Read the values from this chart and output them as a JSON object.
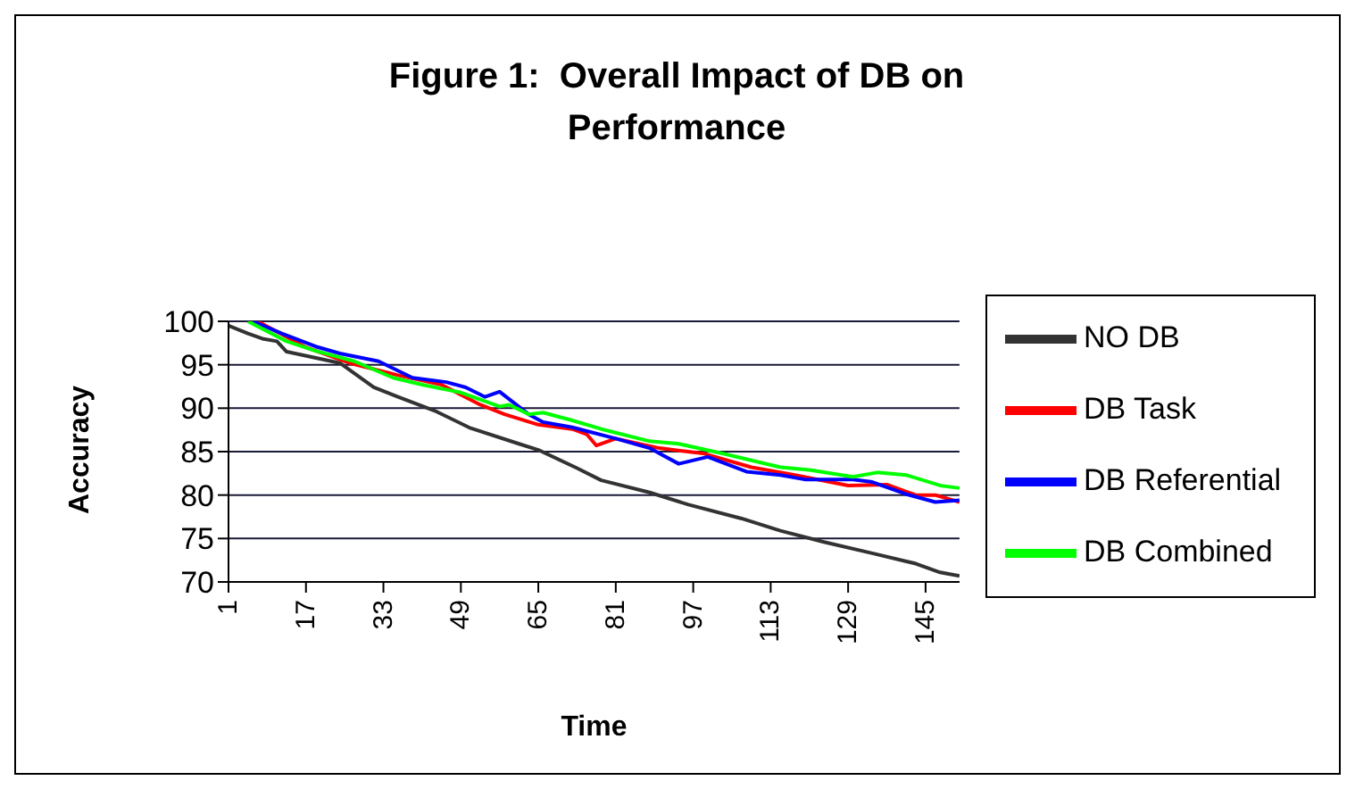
{
  "chart_data": {
    "type": "line",
    "title": "Figure 1:  Overall Impact of DB on Performance",
    "xlabel": "Time",
    "ylabel": "Accuracy",
    "xlim": [
      1,
      152
    ],
    "xticks": [
      1,
      17,
      33,
      49,
      65,
      81,
      97,
      113,
      129,
      145
    ],
    "ylim": [
      70,
      100
    ],
    "yticks": [
      70,
      75,
      80,
      85,
      90,
      95,
      100
    ],
    "grid": "y",
    "legend": "right",
    "marker": "none",
    "line_style": "solid",
    "series": [
      {
        "name": "NO DB",
        "color": "#333333",
        "x": [
          1,
          5,
          8,
          11,
          13,
          24,
          31,
          36,
          44,
          51,
          61,
          65,
          73,
          78,
          88,
          96,
          107,
          115,
          124,
          134,
          143,
          148,
          152
        ],
        "values": [
          99.5,
          98.6,
          98,
          97.7,
          96.5,
          95.2,
          92.4,
          91.3,
          89.6,
          87.7,
          85.9,
          85.2,
          83.1,
          81.7,
          80.3,
          78.9,
          77.3,
          75.9,
          74.6,
          73.3,
          72.1,
          71.1,
          70.7
        ]
      },
      {
        "name": "DB Task",
        "color": "#ff0000",
        "x": [
          7,
          12,
          17,
          26,
          36,
          45,
          53,
          58,
          65,
          72,
          75,
          77,
          81,
          90,
          99,
          109,
          118,
          129,
          137,
          143,
          147,
          152
        ],
        "values": [
          100,
          98.5,
          97,
          95.2,
          93.8,
          92.7,
          90.4,
          89.3,
          88.1,
          87.6,
          87,
          85.7,
          86.5,
          85.4,
          84.8,
          83.2,
          82.3,
          81.1,
          81.2,
          80,
          80,
          79.2
        ]
      },
      {
        "name": "DB Referential",
        "color": "#0000ff",
        "x": [
          6,
          12,
          19,
          24,
          32,
          39,
          46,
          50,
          54,
          57,
          63,
          66,
          72,
          81,
          88,
          94,
          100,
          108,
          115,
          120,
          130,
          134,
          141,
          147,
          152
        ],
        "values": [
          100,
          98.6,
          97.1,
          96.3,
          95.4,
          93.5,
          93,
          92.4,
          91.3,
          91.9,
          89.3,
          88.4,
          87.8,
          86.5,
          85.4,
          83.6,
          84.4,
          82.7,
          82.3,
          81.8,
          81.8,
          81.5,
          80.1,
          79.2,
          79.4
        ]
      },
      {
        "name": "DB Combined",
        "color": "#00ff00",
        "x": [
          5,
          13,
          19,
          27,
          35,
          41,
          49,
          57,
          59,
          63,
          66,
          72,
          78,
          88,
          94,
          103,
          115,
          121,
          130,
          135,
          141,
          148,
          152
        ],
        "values": [
          100,
          97.7,
          96.6,
          95.4,
          93.5,
          92.7,
          91.8,
          90.2,
          90.4,
          89.3,
          89.5,
          88.6,
          87.6,
          86.2,
          85.9,
          84.8,
          83.2,
          82.9,
          82.1,
          82.6,
          82.3,
          81.1,
          80.8
        ]
      }
    ]
  }
}
